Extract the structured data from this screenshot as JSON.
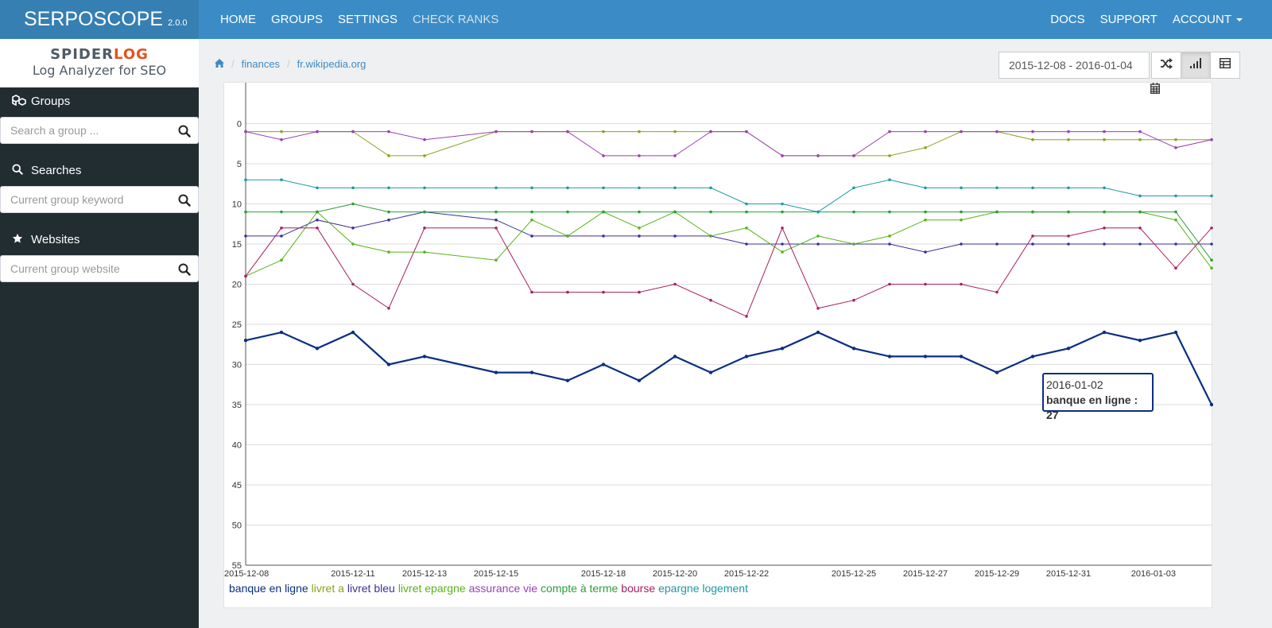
{
  "app": {
    "name": "SERPOSCOPE",
    "version": "2.0.0"
  },
  "nav": {
    "left": [
      "HOME",
      "GROUPS",
      "SETTINGS",
      "CHECK RANKS"
    ],
    "right": [
      "DOCS",
      "SUPPORT",
      "ACCOUNT"
    ]
  },
  "logo": {
    "spider": "SPIDER",
    "log": "LOG",
    "subtitle": "Log Analyzer for SEO"
  },
  "sidebar": {
    "groups": {
      "title": "Groups",
      "placeholder": "Search a group ..."
    },
    "searches": {
      "title": "Searches",
      "placeholder": "Current group keyword"
    },
    "websites": {
      "title": "Websites",
      "placeholder": "Current group website"
    }
  },
  "breadcrumb": {
    "items": [
      "finances",
      "fr.wikipedia.org"
    ]
  },
  "date_range": "2015-12-08 - 2016-01-04",
  "tooltip": {
    "date": "2016-01-02",
    "text": "banque en ligne : 27"
  },
  "colors": {
    "topbar": "#3b8cc6",
    "sidebar": "#222d32",
    "accent_log": "#e4521b"
  },
  "chart_data": {
    "type": "line",
    "x": [
      "2015-12-08",
      "2015-12-09",
      "2015-12-10",
      "2015-12-11",
      "2015-12-12",
      "2015-12-13",
      "2015-12-15",
      "2015-12-16",
      "2015-12-17",
      "2015-12-18",
      "2015-12-19",
      "2015-12-20",
      "2015-12-21",
      "2015-12-22",
      "2015-12-23",
      "2015-12-24",
      "2015-12-25",
      "2015-12-26",
      "2015-12-27",
      "2015-12-28",
      "2015-12-29",
      "2015-12-30",
      "2015-12-31",
      "2016-01-01",
      "2016-01-02",
      "2016-01-03",
      "2016-01-04"
    ],
    "x_ticks": [
      "2015-12-08",
      "2015-12-11",
      "2015-12-13",
      "2015-12-15",
      "2015-12-18",
      "2015-12-20",
      "2015-12-22",
      "2015-12-25",
      "2015-12-27",
      "2015-12-29",
      "2015-12-31",
      "2016-01-03"
    ],
    "y_ticks": [
      0,
      5,
      10,
      15,
      20,
      25,
      30,
      35,
      40,
      45,
      50,
      55
    ],
    "ylim": [
      55,
      -5
    ],
    "series": [
      {
        "name": "banque en ligne",
        "color": "#0b2e82",
        "width": 2.2,
        "values": [
          27,
          26,
          28,
          26,
          30,
          29,
          31,
          31,
          32,
          30,
          32,
          29,
          31,
          29,
          28,
          26,
          28,
          29,
          29,
          29,
          31,
          29,
          28,
          26,
          27,
          26,
          35
        ]
      },
      {
        "name": "livret a",
        "color": "#8aa31f",
        "width": 1,
        "values": [
          1,
          1,
          1,
          1,
          4,
          4,
          1,
          1,
          1,
          1,
          1,
          1,
          1,
          1,
          4,
          4,
          4,
          4,
          3,
          1,
          1,
          2,
          2,
          2,
          2,
          2,
          2
        ]
      },
      {
        "name": "livret bleu",
        "color": "#3d2f9c",
        "width": 1,
        "values": [
          14,
          14,
          12,
          13,
          12,
          11,
          12,
          14,
          14,
          14,
          14,
          14,
          14,
          15,
          15,
          15,
          15,
          15,
          16,
          15,
          15,
          15,
          15,
          15,
          15,
          15,
          15
        ]
      },
      {
        "name": "livret epargne",
        "color": "#57b31a",
        "width": 1,
        "values": [
          19,
          17,
          11,
          15,
          16,
          16,
          17,
          12,
          14,
          11,
          13,
          11,
          14,
          13,
          16,
          14,
          15,
          14,
          12,
          12,
          11,
          11,
          11,
          11,
          11,
          12,
          18
        ]
      },
      {
        "name": "assurance vie",
        "color": "#9b3fb5",
        "width": 1,
        "values": [
          1,
          2,
          1,
          1,
          1,
          2,
          1,
          1,
          1,
          4,
          4,
          4,
          1,
          1,
          4,
          4,
          4,
          1,
          1,
          1,
          1,
          1,
          1,
          1,
          1,
          3,
          2
        ]
      },
      {
        "name": "compte à terme",
        "color": "#2b9e3a",
        "width": 1,
        "values": [
          11,
          11,
          11,
          10,
          11,
          11,
          11,
          11,
          11,
          11,
          11,
          11,
          11,
          11,
          11,
          11,
          11,
          11,
          11,
          11,
          11,
          11,
          11,
          11,
          11,
          11,
          17
        ]
      },
      {
        "name": "bourse",
        "color": "#a8205f",
        "width": 1,
        "values": [
          19,
          13,
          13,
          20,
          23,
          13,
          13,
          21,
          21,
          21,
          21,
          20,
          22,
          24,
          13,
          23,
          22,
          20,
          20,
          20,
          21,
          14,
          14,
          13,
          13,
          18,
          13
        ]
      },
      {
        "name": "epargne logement",
        "color": "#1d98a5",
        "width": 1,
        "values": [
          7,
          7,
          8,
          8,
          8,
          8,
          8,
          8,
          8,
          8,
          8,
          8,
          8,
          10,
          10,
          11,
          8,
          7,
          8,
          8,
          8,
          8,
          8,
          8,
          9,
          9,
          9
        ]
      }
    ],
    "grid": true,
    "legend": "bottom-left"
  }
}
